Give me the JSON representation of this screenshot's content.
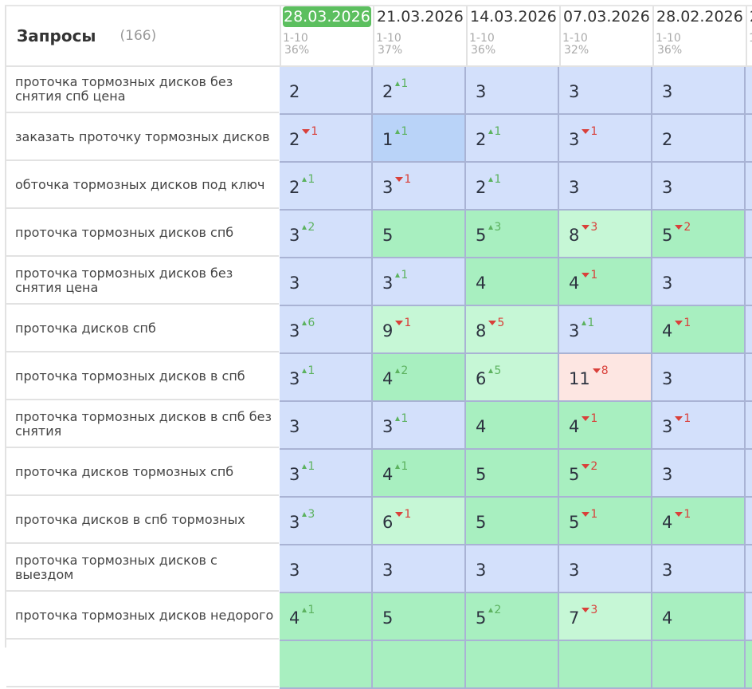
{
  "header": {
    "title": "Запросы",
    "count": "(166)"
  },
  "columns": [
    {
      "date": "28.03.2026",
      "range": "1-10",
      "pct": "36%",
      "active": true
    },
    {
      "date": "21.03.2026",
      "range": "1-10",
      "pct": "37%",
      "active": false
    },
    {
      "date": "14.03.2026",
      "range": "1-10",
      "pct": "36%",
      "active": false
    },
    {
      "date": "07.03.2026",
      "range": "1-10",
      "pct": "32%",
      "active": false
    },
    {
      "date": "28.02.2026",
      "range": "1-10",
      "pct": "36%",
      "active": false
    },
    {
      "date": "2",
      "range": "1",
      "pct": "",
      "active": false
    }
  ],
  "colors": {
    "active_date_bg": "#5cbf5f",
    "cell_blue": "#d3e0fb",
    "cell_blue_dark": "#b9d3f8",
    "cell_green": "#a8efc0",
    "cell_green_light": "#c6f7d6",
    "cell_red": "#fde6e2",
    "delta_up": "#5cb25f",
    "delta_down": "#d9403a"
  },
  "rows": [
    {
      "query": "проточка тормозных дисков без снятия спб цена",
      "cells": [
        {
          "v": "2",
          "d": "",
          "dir": "",
          "bg": "blue"
        },
        {
          "v": "2",
          "d": "1",
          "dir": "up",
          "bg": "blue"
        },
        {
          "v": "3",
          "d": "",
          "dir": "",
          "bg": "blue"
        },
        {
          "v": "3",
          "d": "",
          "dir": "",
          "bg": "blue"
        },
        {
          "v": "3",
          "d": "",
          "dir": "",
          "bg": "blue"
        }
      ]
    },
    {
      "query": "заказать проточку тормозных дисков",
      "cells": [
        {
          "v": "2",
          "d": "1",
          "dir": "down",
          "bg": "blue"
        },
        {
          "v": "1",
          "d": "1",
          "dir": "up",
          "bg": "bluedark"
        },
        {
          "v": "2",
          "d": "1",
          "dir": "up",
          "bg": "blue"
        },
        {
          "v": "3",
          "d": "1",
          "dir": "down",
          "bg": "blue"
        },
        {
          "v": "2",
          "d": "",
          "dir": "",
          "bg": "blue"
        }
      ]
    },
    {
      "query": "обточка тормозных дисков под ключ",
      "cells": [
        {
          "v": "2",
          "d": "1",
          "dir": "up",
          "bg": "blue"
        },
        {
          "v": "3",
          "d": "1",
          "dir": "down",
          "bg": "blue"
        },
        {
          "v": "2",
          "d": "1",
          "dir": "up",
          "bg": "blue"
        },
        {
          "v": "3",
          "d": "",
          "dir": "",
          "bg": "blue"
        },
        {
          "v": "3",
          "d": "",
          "dir": "",
          "bg": "blue"
        }
      ]
    },
    {
      "query": "проточка тормозных дисков спб",
      "cells": [
        {
          "v": "3",
          "d": "2",
          "dir": "up",
          "bg": "blue"
        },
        {
          "v": "5",
          "d": "",
          "dir": "",
          "bg": "green"
        },
        {
          "v": "5",
          "d": "3",
          "dir": "up",
          "bg": "green"
        },
        {
          "v": "8",
          "d": "3",
          "dir": "down",
          "bg": "greenlight"
        },
        {
          "v": "5",
          "d": "2",
          "dir": "down",
          "bg": "green"
        }
      ]
    },
    {
      "query": "проточка тормозных дисков без снятия цена",
      "cells": [
        {
          "v": "3",
          "d": "",
          "dir": "",
          "bg": "blue"
        },
        {
          "v": "3",
          "d": "1",
          "dir": "up",
          "bg": "blue"
        },
        {
          "v": "4",
          "d": "",
          "dir": "",
          "bg": "green"
        },
        {
          "v": "4",
          "d": "1",
          "dir": "down",
          "bg": "green"
        },
        {
          "v": "3",
          "d": "",
          "dir": "",
          "bg": "blue"
        }
      ]
    },
    {
      "query": "проточка дисков спб",
      "cells": [
        {
          "v": "3",
          "d": "6",
          "dir": "up",
          "bg": "blue"
        },
        {
          "v": "9",
          "d": "1",
          "dir": "down",
          "bg": "greenlight"
        },
        {
          "v": "8",
          "d": "5",
          "dir": "down",
          "bg": "greenlight"
        },
        {
          "v": "3",
          "d": "1",
          "dir": "up",
          "bg": "blue"
        },
        {
          "v": "4",
          "d": "1",
          "dir": "down",
          "bg": "green"
        }
      ]
    },
    {
      "query": "проточка тормозных дисков в спб",
      "cells": [
        {
          "v": "3",
          "d": "1",
          "dir": "up",
          "bg": "blue"
        },
        {
          "v": "4",
          "d": "2",
          "dir": "up",
          "bg": "green"
        },
        {
          "v": "6",
          "d": "5",
          "dir": "up",
          "bg": "greenlight"
        },
        {
          "v": "11",
          "d": "8",
          "dir": "down",
          "bg": "red"
        },
        {
          "v": "3",
          "d": "",
          "dir": "",
          "bg": "blue"
        }
      ]
    },
    {
      "query": "проточка тормозных дисков в спб без снятия",
      "cells": [
        {
          "v": "3",
          "d": "",
          "dir": "",
          "bg": "blue"
        },
        {
          "v": "3",
          "d": "1",
          "dir": "up",
          "bg": "blue"
        },
        {
          "v": "4",
          "d": "",
          "dir": "",
          "bg": "green"
        },
        {
          "v": "4",
          "d": "1",
          "dir": "down",
          "bg": "green"
        },
        {
          "v": "3",
          "d": "1",
          "dir": "down",
          "bg": "blue"
        }
      ]
    },
    {
      "query": "проточка дисков тормозных спб",
      "cells": [
        {
          "v": "3",
          "d": "1",
          "dir": "up",
          "bg": "blue"
        },
        {
          "v": "4",
          "d": "1",
          "dir": "up",
          "bg": "green"
        },
        {
          "v": "5",
          "d": "",
          "dir": "",
          "bg": "green"
        },
        {
          "v": "5",
          "d": "2",
          "dir": "down",
          "bg": "green"
        },
        {
          "v": "3",
          "d": "",
          "dir": "",
          "bg": "blue"
        }
      ]
    },
    {
      "query": "проточка дисков в спб тормозных",
      "cells": [
        {
          "v": "3",
          "d": "3",
          "dir": "up",
          "bg": "blue"
        },
        {
          "v": "6",
          "d": "1",
          "dir": "down",
          "bg": "greenlight"
        },
        {
          "v": "5",
          "d": "",
          "dir": "",
          "bg": "green"
        },
        {
          "v": "5",
          "d": "1",
          "dir": "down",
          "bg": "green"
        },
        {
          "v": "4",
          "d": "1",
          "dir": "down",
          "bg": "green"
        }
      ]
    },
    {
      "query": "проточка тормозных дисков с выездом",
      "cells": [
        {
          "v": "3",
          "d": "",
          "dir": "",
          "bg": "blue"
        },
        {
          "v": "3",
          "d": "",
          "dir": "",
          "bg": "blue"
        },
        {
          "v": "3",
          "d": "",
          "dir": "",
          "bg": "blue"
        },
        {
          "v": "3",
          "d": "",
          "dir": "",
          "bg": "blue"
        },
        {
          "v": "3",
          "d": "",
          "dir": "",
          "bg": "blue"
        }
      ]
    },
    {
      "query": "проточка тормозных дисков недорого",
      "cells": [
        {
          "v": "4",
          "d": "1",
          "dir": "up",
          "bg": "green"
        },
        {
          "v": "5",
          "d": "",
          "dir": "",
          "bg": "green"
        },
        {
          "v": "5",
          "d": "2",
          "dir": "up",
          "bg": "green"
        },
        {
          "v": "7",
          "d": "3",
          "dir": "down",
          "bg": "greenlight"
        },
        {
          "v": "4",
          "d": "",
          "dir": "",
          "bg": "green"
        }
      ]
    }
  ]
}
